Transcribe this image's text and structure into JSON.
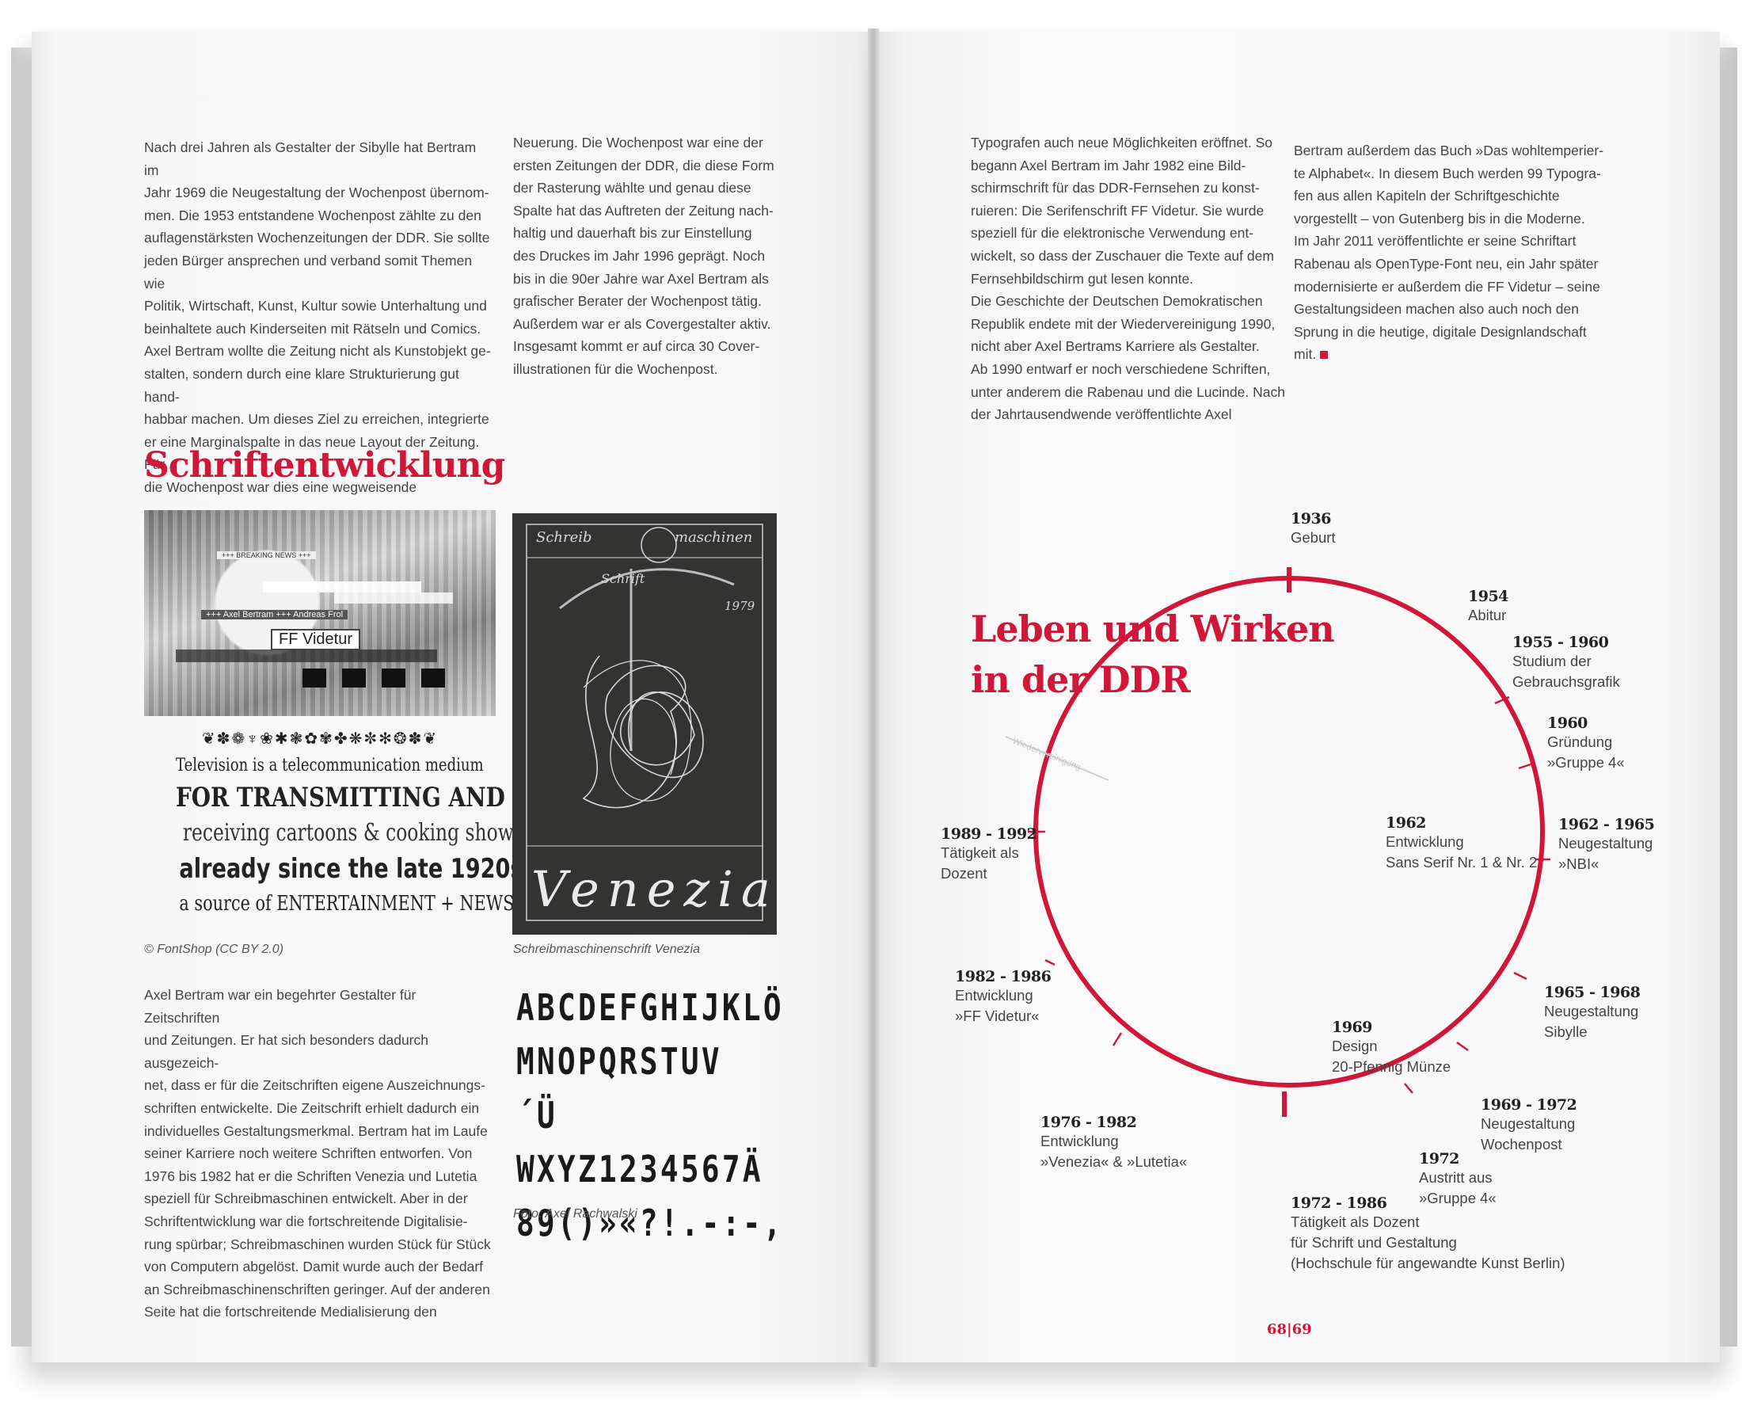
{
  "left_page": {
    "column1_top": "Nach drei Jahren als Gestalter der Sibylle hat Bertram im\nJahr 1969 die Neugestaltung der Wochenpost übernom-\nmen. Die 1953 entstandene Wochenpost zählte zu den\nauflagenstärksten Wochenzeitungen der DDR. Sie sollte\njeden Bürger ansprechen und verband somit Themen wie\nPolitik, Wirtschaft, Kunst, Kultur sowie Unterhaltung und\nbeinhaltete auch Kinderseiten mit Rätseln und Comics.\nAxel Bertram wollte die Zeitung nicht als Kunstobjekt ge-\nstalten, sondern durch eine klare Strukturierung gut hand-\nhabbar machen. Um dieses Ziel zu erreichen, integrierte\ner eine Marginalspalte in das neue Layout der Zeitung. Für\ndie Wochenpost war dies eine wegweisende",
    "column2_top": "Neuerung. Die Wochenpost war eine der\nersten Zeitungen der DDR, die diese Form\nder Rasterung wählte und genau diese\nSpalte hat das Auftreten der Zeitung nach-\nhaltig und dauerhaft bis zur Einstellung\ndes Druckes im Jahr 1996 geprägt. Noch\nbis in die 90er Jahre war Axel Bertram als\ngrafischer Berater der Wochenpost tätig.\nAußerdem war er als Covergestalter aktiv.\nInsgesamt kommt er auf circa 30 Cover-\nillustrationen für die Wochenpost.",
    "heading": "Schriftentwicklung",
    "tv_image": {
      "breaking": "+++ BREAKING NEWS +++",
      "byline": "+++ Axel Bertram +++ Andreas Frol",
      "font_label": "FF Videtur"
    },
    "specimen": {
      "ornaments": "❦✽❁♆❀✱❃✿✾✤❋✼✻❂✽❦",
      "line1": "Television is a telecommunication medium",
      "line2": "FOR TRANSMITTING AND",
      "line3": "receiving cartoons & cooking shows",
      "line4": "already since the late 1920s",
      "line5": "a source of ENTERTAINMENT + NEWS"
    },
    "caption1": "© FontShop (CC BY 2.0)",
    "venezia_image": {
      "top_left": "Schreib",
      "top_right": "maschinen",
      "sub": "Schrift",
      "year": "1979",
      "word": "Venezia"
    },
    "caption2": "Schreibmaschinenschrift Venezia",
    "alphabet": [
      "ABCDEFGHIJKLÖ",
      "MNOPQRSTUV´Ü",
      "WXYZ1234567Ä",
      "89()»«?!.-:-,"
    ],
    "caption3": "Foto: Axel Rachwalski",
    "column1_bottom": "Axel Bertram war ein begehrter Gestalter für Zeitschriften\nund Zeitungen. Er hat sich besonders dadurch ausgezeich-\nnet, dass er für die Zeitschriften eigene Auszeichnungs-\nschriften entwickelte. Die Zeitschrift erhielt dadurch ein\nindividuelles Gestaltungsmerkmal. Bertram hat im Laufe\nseiner Karriere noch weitere Schriften entworfen. Von\n1976 bis 1982 hat er die Schriften Venezia und Lutetia\nspeziell für Schreibmaschinen entwickelt. Aber in der\nSchriftentwicklung war die fortschreitende Digitalisie-\nrung spürbar; Schreibmaschinen wurden Stück für Stück\nvon Computern abgelöst. Damit wurde auch der Bedarf\nan Schreibmaschinenschriften geringer. Auf der anderen\nSeite hat die fortschreitende Medialisierung den"
  },
  "right_page": {
    "column1": "Typografen auch neue Möglichkeiten eröffnet. So\nbegann Axel Bertram im Jahr 1982 eine Bild-\nschirmschrift für das DDR-Fernsehen zu konst-\nruieren: Die Serifenschrift FF Videtur. Sie wurde\nspeziell für die elektronische Verwendung ent-\nwickelt, so dass der Zuschauer die Texte auf dem\nFernsehbildschirm gut lesen konnte.\nDie Geschichte der Deutschen Demokratischen\nRepublik endete mit der Wiedervereinigung 1990,\nnicht aber Axel Bertrams Karriere als Gestalter.\nAb 1990 entwarf er noch verschiedene Schriften,\nunter anderem die Rabenau und die Lucinde. Nach\nder Jahrtausendwende veröffentlichte Axel",
    "column2": "Bertram außerdem das Buch »Das wohltemperier-\nte Alphabet«. In diesem Buch werden 99 Typogra-\nfen aus allen Kapiteln der Schriftgeschichte\nvorgestellt – von Gutenberg bis in die Moderne.\nIm Jahr 2011 veröffentlichte er seine Schriftart\nRabenau als OpenType-Font neu, ein Jahr später\nmodernisierte er außerdem die FF Videtur – seine\nGestaltungsideen machen also auch noch den\nSprung in die heutige, digitale Designlandschaft\nmit.",
    "heading_line1": "Leben und Wirken",
    "heading_line2": "in der DDR",
    "reunification_label": "Wiedervereinigung",
    "timeline": [
      {
        "year": "1936",
        "desc": "Geburt"
      },
      {
        "year": "1954",
        "desc": "Abitur"
      },
      {
        "year": "1955 - 1960",
        "desc": "Studium der\nGebrauchsgrafik"
      },
      {
        "year": "1960",
        "desc": "Gründung\n»Gruppe 4«"
      },
      {
        "year": "1962 - 1965",
        "desc": "Neugestaltung\n»NBI«"
      },
      {
        "year": "1962",
        "desc": "Entwicklung\nSans Serif Nr. 1 & Nr. 2"
      },
      {
        "year": "1965 - 1968",
        "desc": "Neugestaltung\nSibylle"
      },
      {
        "year": "1969",
        "desc": "Design\n20-Pfennig Münze"
      },
      {
        "year": "1969 - 1972",
        "desc": "Neugestaltung\nWochenpost"
      },
      {
        "year": "1972",
        "desc": "Austritt aus\n»Gruppe 4«"
      },
      {
        "year": "1972 - 1986",
        "desc": "Tätigkeit als Dozent\nfür Schrift und Gestaltung\n(Hochschule für angewandte Kunst Berlin)"
      },
      {
        "year": "1976 - 1982",
        "desc": "Entwicklung\n»Venezia« & »Lutetia«"
      },
      {
        "year": "1982 - 1986",
        "desc": "Entwicklung\n»FF Videtur«"
      },
      {
        "year": "1989 - 1992",
        "desc": "Tätigkeit als\nDozent"
      }
    ],
    "page_numbers": "68|69"
  },
  "colors": {
    "accent": "#d0173a",
    "text": "#444444",
    "page": "#f8f8f8"
  }
}
